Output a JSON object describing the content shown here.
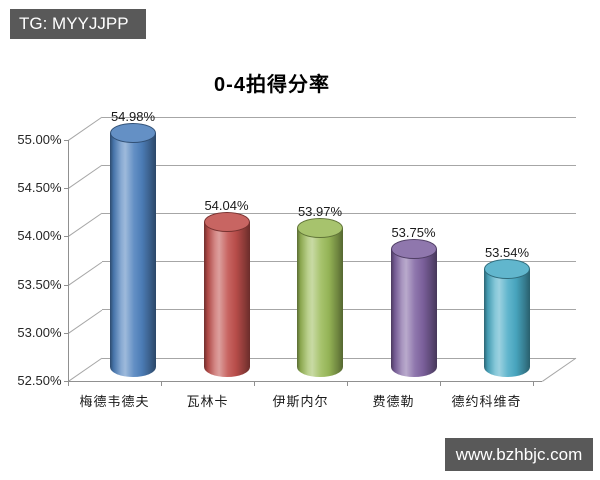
{
  "header_banner": {
    "text": "TG: MYYJJPP"
  },
  "footer_banner": {
    "text": "www.bzhbjc.com"
  },
  "chart_data": {
    "type": "bar",
    "subtype": "3d-cylinder",
    "title": "0-4拍得分率",
    "categories": [
      "梅德韦德夫",
      "瓦林卡",
      "伊斯内尔",
      "费德勒",
      "德约科维奇"
    ],
    "values": [
      54.98,
      54.04,
      53.97,
      53.75,
      53.54
    ],
    "value_labels": [
      "54.98%",
      "54.04%",
      "53.97%",
      "53.75%",
      "53.54%"
    ],
    "bar_colors": [
      "#4F81BD",
      "#C0504D",
      "#9BBB59",
      "#8064A2",
      "#4BACC6"
    ],
    "ylim": [
      52.5,
      55.0
    ],
    "ytick_step": 0.5,
    "ytick_labels": [
      "52.50%",
      "53.00%",
      "53.50%",
      "54.00%",
      "54.50%",
      "55.00%"
    ],
    "xlabel": "",
    "ylabel": "",
    "grid": true,
    "legend": "none"
  },
  "colors": {
    "banner_bg": "#595959",
    "banner_text": "#FFFFFF",
    "axis_line": "#909090",
    "gridline": "#A6A6A6",
    "background": "#FFFFFF"
  }
}
